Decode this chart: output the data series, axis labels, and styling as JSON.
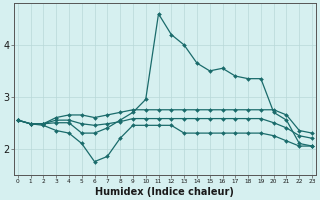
{
  "x": [
    0,
    1,
    2,
    3,
    4,
    5,
    6,
    7,
    8,
    9,
    10,
    11,
    12,
    13,
    14,
    15,
    16,
    17,
    18,
    19,
    20,
    21,
    22,
    23
  ],
  "y_spike": [
    2.55,
    2.48,
    2.48,
    2.5,
    2.5,
    2.3,
    2.3,
    2.4,
    2.55,
    2.7,
    2.95,
    4.6,
    4.2,
    4.0,
    3.65,
    3.5,
    3.55,
    3.4,
    3.35,
    3.35,
    2.7,
    2.55,
    2.1,
    2.05
  ],
  "y_upper": [
    2.55,
    2.48,
    2.48,
    2.6,
    2.65,
    2.65,
    2.6,
    2.65,
    2.7,
    2.75,
    2.75,
    2.75,
    2.75,
    2.75,
    2.75,
    2.75,
    2.75,
    2.75,
    2.75,
    2.75,
    2.75,
    2.65,
    2.35,
    2.3
  ],
  "y_mid": [
    2.55,
    2.48,
    2.48,
    2.55,
    2.55,
    2.48,
    2.45,
    2.48,
    2.52,
    2.58,
    2.58,
    2.58,
    2.58,
    2.58,
    2.58,
    2.58,
    2.58,
    2.58,
    2.58,
    2.58,
    2.5,
    2.4,
    2.25,
    2.2
  ],
  "y_lower": [
    2.55,
    2.48,
    2.45,
    2.35,
    2.3,
    2.1,
    1.75,
    1.85,
    2.2,
    2.45,
    2.45,
    2.45,
    2.45,
    2.3,
    2.3,
    2.3,
    2.3,
    2.3,
    2.3,
    2.3,
    2.25,
    2.15,
    2.05,
    2.05
  ],
  "bg_color": "#d6f0f0",
  "grid_color": "#b8d8d8",
  "line_color": "#1a6b6b",
  "xlabel": "Humidex (Indice chaleur)",
  "ylim": [
    1.5,
    4.8
  ],
  "xlim": [
    -0.3,
    23.3
  ],
  "yticks": [
    2,
    3,
    4
  ],
  "xticks": [
    0,
    1,
    2,
    3,
    4,
    5,
    6,
    7,
    8,
    9,
    10,
    11,
    12,
    13,
    14,
    15,
    16,
    17,
    18,
    19,
    20,
    21,
    22,
    23
  ]
}
